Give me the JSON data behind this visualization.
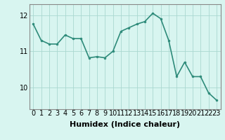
{
  "x": [
    0,
    1,
    2,
    3,
    4,
    5,
    6,
    7,
    8,
    9,
    10,
    11,
    12,
    13,
    14,
    15,
    16,
    17,
    18,
    19,
    20,
    21,
    22,
    23
  ],
  "y": [
    11.75,
    11.3,
    11.2,
    11.2,
    11.45,
    11.35,
    11.35,
    10.82,
    10.85,
    10.82,
    11.0,
    11.55,
    11.65,
    11.75,
    11.82,
    12.05,
    11.9,
    11.3,
    10.3,
    10.7,
    10.3,
    10.3,
    9.85,
    9.65
  ],
  "line_color": "#2e8b7a",
  "marker": "o",
  "marker_size": 2.0,
  "bg_color": "#d8f5f0",
  "grid_color": "#aad8d0",
  "xlabel": "Humidex (Indice chaleur)",
  "xlabel_fontsize": 8,
  "tick_fontsize": 7,
  "ylim": [
    9.4,
    12.3
  ],
  "yticks": [
    10,
    11,
    12
  ],
  "xticks": [
    0,
    1,
    2,
    3,
    4,
    5,
    6,
    7,
    8,
    9,
    10,
    11,
    12,
    13,
    14,
    15,
    16,
    17,
    18,
    19,
    20,
    21,
    22,
    23
  ],
  "line_width": 1.2,
  "spine_color": "#888888"
}
